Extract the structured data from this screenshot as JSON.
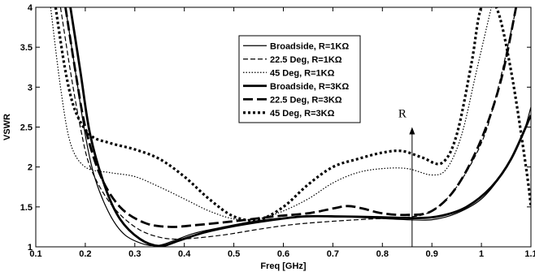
{
  "chart_data": {
    "type": "line",
    "title": "",
    "xlabel": "Freq [GHz]",
    "ylabel": "VSWR",
    "xlim": [
      0.1,
      1.1
    ],
    "ylim": [
      1,
      4
    ],
    "xticks": [
      "0.1",
      "0.2",
      "0.3",
      "0.4",
      "0.5",
      "0.6",
      "0.7",
      "0.8",
      "0.9",
      "1",
      "1.1"
    ],
    "yticks": [
      "1",
      "1.5",
      "2",
      "2.5",
      "3",
      "3.5",
      "4"
    ],
    "grid": false,
    "legend_position": "top-center",
    "annotation": {
      "text": "R",
      "x": 0.86,
      "y_from": 1.0,
      "y_to": 2.5
    },
    "series": [
      {
        "name": "Broadside, R=1KΩ",
        "style": "solid-thin",
        "points": [
          [
            0.16,
            4.0
          ],
          [
            0.18,
            3.2
          ],
          [
            0.2,
            2.4
          ],
          [
            0.22,
            1.85
          ],
          [
            0.25,
            1.4
          ],
          [
            0.28,
            1.15
          ],
          [
            0.32,
            1.03
          ],
          [
            0.35,
            1.02
          ],
          [
            0.38,
            1.08
          ],
          [
            0.42,
            1.17
          ],
          [
            0.48,
            1.25
          ],
          [
            0.55,
            1.33
          ],
          [
            0.62,
            1.37
          ],
          [
            0.7,
            1.38
          ],
          [
            0.78,
            1.36
          ],
          [
            0.85,
            1.34
          ],
          [
            0.9,
            1.34
          ],
          [
            0.95,
            1.42
          ],
          [
            1.0,
            1.6
          ],
          [
            1.04,
            1.9
          ],
          [
            1.08,
            2.35
          ],
          [
            1.1,
            2.75
          ]
        ]
      },
      {
        "name": "22.5 Deg, R=1KΩ",
        "style": "dashed-thin",
        "points": [
          [
            0.15,
            4.0
          ],
          [
            0.17,
            3.2
          ],
          [
            0.19,
            2.5
          ],
          [
            0.21,
            2.0
          ],
          [
            0.25,
            1.55
          ],
          [
            0.3,
            1.25
          ],
          [
            0.35,
            1.12
          ],
          [
            0.4,
            1.1
          ],
          [
            0.48,
            1.15
          ],
          [
            0.55,
            1.22
          ],
          [
            0.62,
            1.28
          ],
          [
            0.7,
            1.32
          ],
          [
            0.78,
            1.35
          ],
          [
            0.85,
            1.37
          ],
          [
            0.9,
            1.45
          ],
          [
            0.95,
            1.75
          ],
          [
            1.0,
            2.3
          ],
          [
            1.03,
            2.9
          ],
          [
            1.06,
            3.7
          ],
          [
            1.07,
            4.0
          ]
        ]
      },
      {
        "name": "45 Deg, R=1KΩ",
        "style": "dotted-thin",
        "points": [
          [
            0.13,
            4.0
          ],
          [
            0.15,
            3.0
          ],
          [
            0.17,
            2.3
          ],
          [
            0.2,
            2.0
          ],
          [
            0.25,
            1.93
          ],
          [
            0.3,
            1.88
          ],
          [
            0.35,
            1.75
          ],
          [
            0.4,
            1.6
          ],
          [
            0.45,
            1.45
          ],
          [
            0.5,
            1.35
          ],
          [
            0.55,
            1.35
          ],
          [
            0.6,
            1.45
          ],
          [
            0.65,
            1.6
          ],
          [
            0.7,
            1.8
          ],
          [
            0.75,
            1.93
          ],
          [
            0.8,
            1.98
          ],
          [
            0.85,
            1.98
          ],
          [
            0.9,
            1.9
          ],
          [
            0.93,
            1.98
          ],
          [
            0.96,
            2.4
          ],
          [
            0.99,
            3.2
          ],
          [
            1.02,
            4.0
          ]
        ]
      },
      {
        "name": "Broadside, R=3KΩ",
        "style": "solid-thick",
        "points": [
          [
            0.17,
            4.0
          ],
          [
            0.19,
            3.2
          ],
          [
            0.21,
            2.4
          ],
          [
            0.24,
            1.75
          ],
          [
            0.27,
            1.35
          ],
          [
            0.31,
            1.1
          ],
          [
            0.35,
            1.01
          ],
          [
            0.39,
            1.08
          ],
          [
            0.44,
            1.18
          ],
          [
            0.5,
            1.26
          ],
          [
            0.57,
            1.33
          ],
          [
            0.64,
            1.38
          ],
          [
            0.72,
            1.38
          ],
          [
            0.8,
            1.37
          ],
          [
            0.87,
            1.36
          ],
          [
            0.92,
            1.39
          ],
          [
            0.97,
            1.5
          ],
          [
            1.02,
            1.75
          ],
          [
            1.06,
            2.1
          ],
          [
            1.1,
            2.65
          ]
        ]
      },
      {
        "name": "22.5 Deg, R=3KΩ",
        "style": "dashed-thick",
        "points": [
          [
            0.16,
            4.0
          ],
          [
            0.18,
            3.2
          ],
          [
            0.2,
            2.5
          ],
          [
            0.23,
            1.9
          ],
          [
            0.27,
            1.5
          ],
          [
            0.32,
            1.3
          ],
          [
            0.37,
            1.25
          ],
          [
            0.42,
            1.27
          ],
          [
            0.5,
            1.32
          ],
          [
            0.58,
            1.38
          ],
          [
            0.65,
            1.42
          ],
          [
            0.7,
            1.48
          ],
          [
            0.73,
            1.51
          ],
          [
            0.76,
            1.48
          ],
          [
            0.8,
            1.42
          ],
          [
            0.85,
            1.4
          ],
          [
            0.9,
            1.45
          ],
          [
            0.95,
            1.75
          ],
          [
            1.0,
            2.35
          ],
          [
            1.04,
            3.1
          ],
          [
            1.07,
            4.0
          ]
        ]
      },
      {
        "name": "45 Deg, R=3KΩ",
        "style": "dotted-thick",
        "points": [
          [
            0.14,
            4.0
          ],
          [
            0.16,
            3.2
          ],
          [
            0.18,
            2.7
          ],
          [
            0.21,
            2.4
          ],
          [
            0.25,
            2.3
          ],
          [
            0.3,
            2.22
          ],
          [
            0.35,
            2.1
          ],
          [
            0.4,
            1.88
          ],
          [
            0.45,
            1.6
          ],
          [
            0.5,
            1.38
          ],
          [
            0.55,
            1.34
          ],
          [
            0.6,
            1.5
          ],
          [
            0.65,
            1.78
          ],
          [
            0.7,
            2.0
          ],
          [
            0.75,
            2.1
          ],
          [
            0.8,
            2.18
          ],
          [
            0.84,
            2.2
          ],
          [
            0.88,
            2.12
          ],
          [
            0.92,
            2.05
          ],
          [
            0.95,
            2.4
          ],
          [
            0.98,
            3.3
          ],
          [
            1.0,
            4.0
          ],
          [
            1.03,
            4.0
          ],
          [
            1.06,
            3.2
          ],
          [
            1.09,
            2.0
          ],
          [
            1.1,
            1.5
          ]
        ]
      }
    ]
  }
}
